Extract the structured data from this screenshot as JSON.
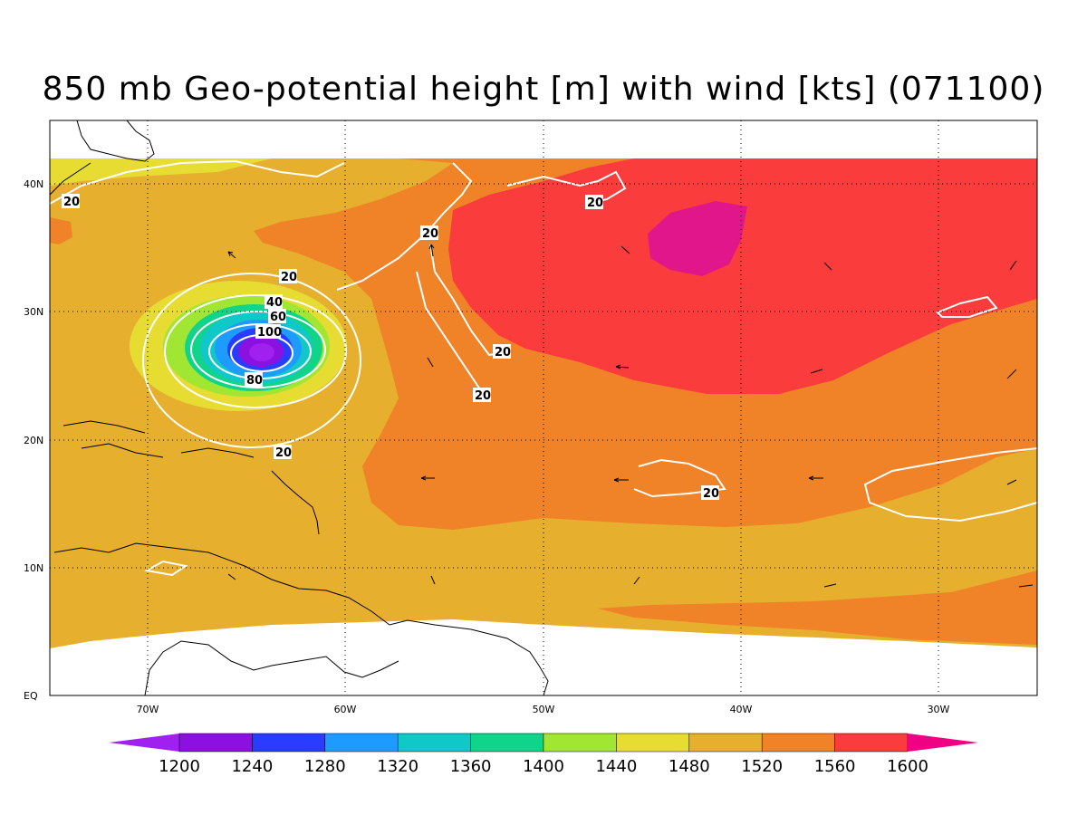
{
  "title": "850 mb Geo-potential height [m] with wind [kts] (071100)",
  "lat_labels": [
    "40N",
    "30N",
    "20N",
    "10N",
    "EQ"
  ],
  "lon_labels": [
    "70W",
    "60W",
    "50W",
    "40W",
    "30W"
  ],
  "colorbar": {
    "ticks": [
      "1200",
      "1240",
      "1280",
      "1320",
      "1360",
      "1400",
      "1440",
      "1480",
      "1520",
      "1560",
      "1600"
    ],
    "colors": [
      "#a020f0",
      "#8c10e0",
      "#2a3cff",
      "#1e9bff",
      "#10c8c8",
      "#10d48a",
      "#a0e632",
      "#e6dc32",
      "#e6af2d",
      "#f08228",
      "#fa3c3c",
      "#f00082"
    ]
  },
  "contour_labels": [
    "20",
    "20",
    "20",
    "20",
    "20",
    "20",
    "20",
    "40",
    "60",
    "100",
    "80",
    "20"
  ]
}
